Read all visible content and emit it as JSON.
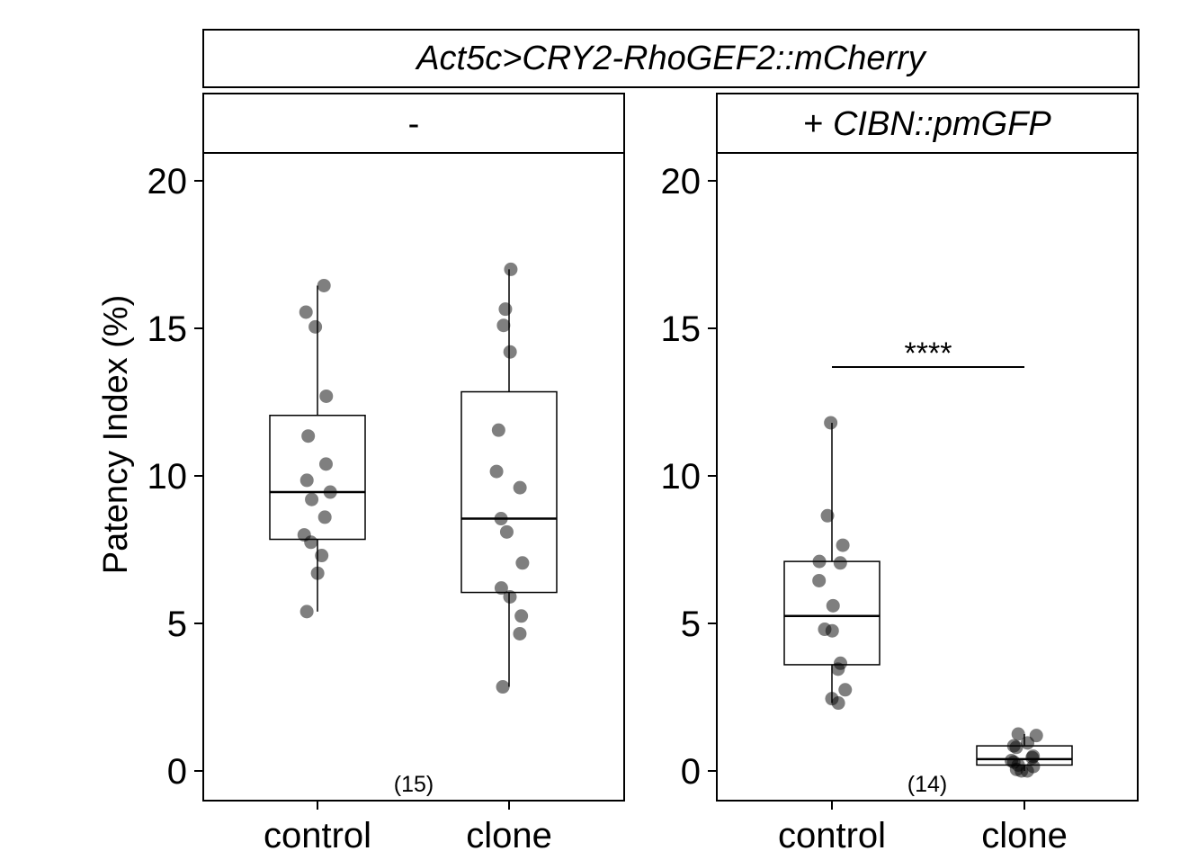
{
  "chart_data": {
    "type": "box",
    "title": "Act5c>CRY2-RhoGEF2::mCherry",
    "ylabel": "Patency Index (%)",
    "ylim": [
      -1,
      21
    ],
    "yticks": [
      0,
      5,
      10,
      15,
      20
    ],
    "categories": [
      "control",
      "clone"
    ],
    "grid": false,
    "panels": [
      {
        "label": "-",
        "n_label": "(15)",
        "significance": null,
        "groups": [
          {
            "category": "control",
            "box": {
              "min": 5.4,
              "q1": 7.85,
              "median": 9.45,
              "q3": 12.05,
              "max": 16.45
            },
            "points": [
              16.45,
              15.55,
              15.05,
              12.7,
              11.35,
              10.4,
              9.85,
              9.45,
              9.2,
              8.6,
              8.0,
              7.75,
              7.3,
              6.7,
              5.4
            ]
          },
          {
            "category": "clone",
            "box": {
              "min": 2.85,
              "q1": 6.05,
              "median": 8.55,
              "q3": 12.85,
              "max": 17.0
            },
            "points": [
              17.0,
              15.65,
              15.1,
              14.2,
              11.55,
              10.15,
              9.6,
              8.55,
              8.1,
              7.05,
              6.2,
              5.9,
              5.25,
              4.65,
              2.85
            ]
          }
        ]
      },
      {
        "label": "+ CIBN::pmGFP",
        "n_label": "(14)",
        "significance": "****",
        "groups": [
          {
            "category": "control",
            "box": {
              "min": 2.3,
              "q1": 3.6,
              "median": 5.25,
              "q3": 7.1,
              "max": 11.8
            },
            "points": [
              11.8,
              8.65,
              7.65,
              7.1,
              7.05,
              6.45,
              5.6,
              4.8,
              4.75,
              3.65,
              3.45,
              2.75,
              2.45,
              2.3
            ]
          },
          {
            "category": "clone",
            "box": {
              "min": 0.0,
              "q1": 0.2,
              "median": 0.4,
              "q3": 0.85,
              "max": 1.25
            },
            "points": [
              1.25,
              1.2,
              0.95,
              0.85,
              0.8,
              0.5,
              0.45,
              0.35,
              0.3,
              0.2,
              0.15,
              0.05,
              0.0,
              0.0
            ]
          }
        ]
      }
    ]
  }
}
